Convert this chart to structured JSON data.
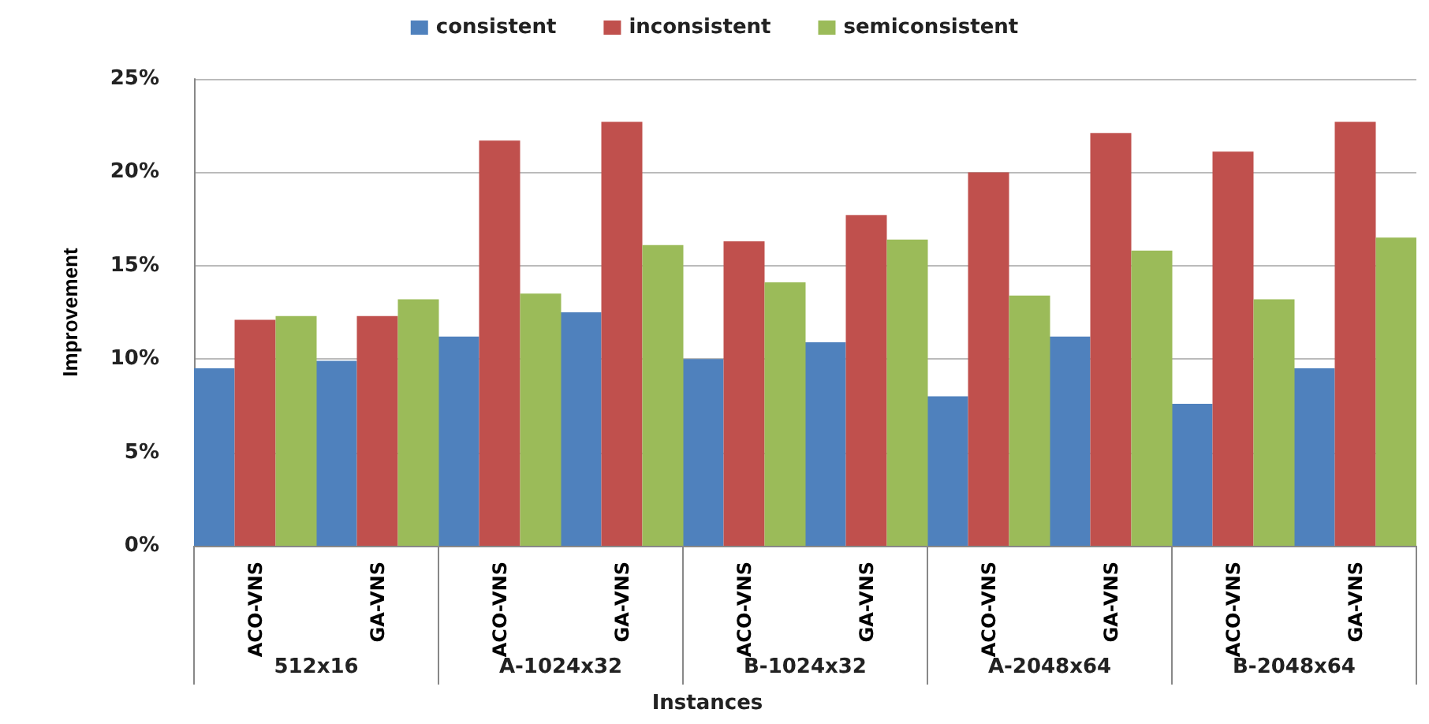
{
  "chart_data": {
    "type": "bar",
    "xlabel": "Instances",
    "ylabel": "Improvement",
    "categories": [
      "ACO-VNS",
      "GA-VNS",
      "ACO-VNS",
      "GA-VNS",
      "ACO-VNS",
      "GA-VNS",
      "ACO-VNS",
      "GA-VNS",
      "ACO-VNS",
      "GA-VNS"
    ],
    "annotations": [
      "512x16",
      "A-1024x32",
      "B-1024x32",
      "A-2048x64",
      "B-2048x64"
    ],
    "series": [
      {
        "name": "consistent",
        "color": "#4f81bd",
        "values": [
          9.5,
          9.9,
          11.2,
          12.5,
          10.0,
          10.9,
          8.0,
          11.2,
          7.6,
          9.5
        ]
      },
      {
        "name": "inconsistent",
        "color": "#c0504d",
        "values": [
          12.1,
          12.3,
          21.7,
          22.7,
          16.3,
          17.7,
          20.0,
          22.1,
          21.1,
          22.7
        ]
      },
      {
        "name": "semiconsistent",
        "color": "#9bbb59",
        "values": [
          12.3,
          13.2,
          13.5,
          16.1,
          14.1,
          16.4,
          13.4,
          15.8,
          13.2,
          16.5
        ]
      }
    ],
    "ylim": [
      0,
      25
    ],
    "yticks": [
      {
        "value": 0,
        "label": "0%"
      },
      {
        "value": 5,
        "label": "5%"
      },
      {
        "value": 10,
        "label": "10%"
      },
      {
        "value": 15,
        "label": "15%"
      },
      {
        "value": 20,
        "label": "20%"
      },
      {
        "value": 25,
        "label": "25%"
      }
    ],
    "grid": "y",
    "legend": "top"
  }
}
